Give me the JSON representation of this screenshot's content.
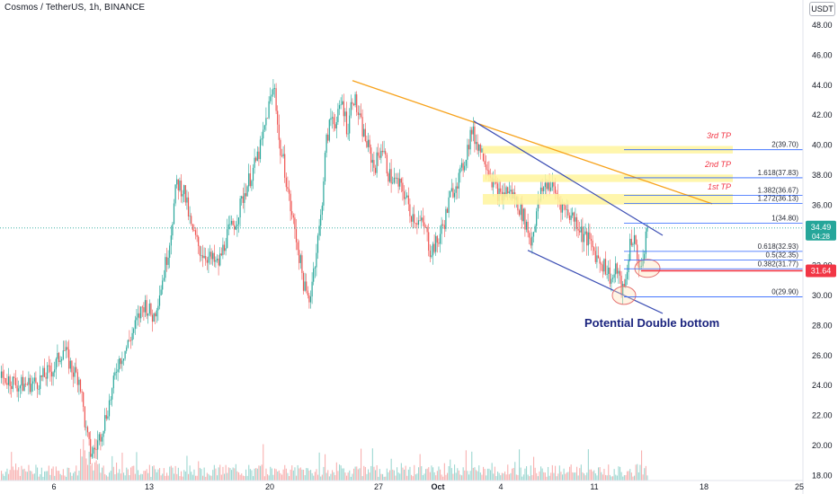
{
  "chart_title": "Cosmos / TetherUS, 1h, BINANCE",
  "currency_unit": "USDT",
  "chart_data": {
    "type": "candlestick",
    "y_axis": {
      "ticks": [
        "48.00",
        "46.00",
        "44.00",
        "42.00",
        "40.00",
        "38.00",
        "36.00",
        "34.00",
        "32.00",
        "30.00",
        "28.00",
        "26.00",
        "24.00",
        "22.00",
        "20.00",
        "18.00"
      ],
      "range": [
        18,
        49
      ]
    },
    "x_axis": {
      "ticks": [
        "6",
        "13",
        "20",
        "27",
        "Oct",
        "4",
        "11",
        "18",
        "25"
      ]
    },
    "current_price": {
      "value": "34.49",
      "countdown": "04:28",
      "color": "#26a69a"
    },
    "marked_price": {
      "value": "31.64",
      "color": "#f23645"
    },
    "price_path": [
      [
        0,
        24.5
      ],
      [
        10,
        24.4
      ],
      [
        20,
        24.0
      ],
      [
        40,
        24.2
      ],
      [
        60,
        25.2
      ],
      [
        70,
        26.5
      ],
      [
        80,
        25.0
      ],
      [
        88,
        24.5
      ],
      [
        95,
        21.0
      ],
      [
        100,
        19.5
      ],
      [
        106,
        19.8
      ],
      [
        115,
        21.5
      ],
      [
        125,
        23.8
      ],
      [
        130,
        25.5
      ],
      [
        140,
        26.5
      ],
      [
        150,
        28.0
      ],
      [
        160,
        29.5
      ],
      [
        170,
        28.5
      ],
      [
        180,
        31.0
      ],
      [
        188,
        33.5
      ],
      [
        196,
        37.5
      ],
      [
        204,
        37.0
      ],
      [
        212,
        34.5
      ],
      [
        222,
        33.0
      ],
      [
        232,
        32.5
      ],
      [
        242,
        32.0
      ],
      [
        252,
        34.0
      ],
      [
        262,
        35.0
      ],
      [
        272,
        37.0
      ],
      [
        282,
        38.5
      ],
      [
        290,
        40.0
      ],
      [
        298,
        42.5
      ],
      [
        305,
        44.0
      ],
      [
        310,
        40.0
      ],
      [
        316,
        38.5
      ],
      [
        322,
        36.0
      ],
      [
        330,
        33.5
      ],
      [
        338,
        30.5
      ],
      [
        343,
        29.5
      ],
      [
        350,
        32.5
      ],
      [
        356,
        35.0
      ],
      [
        362,
        40.0
      ],
      [
        368,
        42.0
      ],
      [
        374,
        41.5
      ],
      [
        380,
        43.0
      ],
      [
        386,
        41.0
      ],
      [
        392,
        43.5
      ],
      [
        400,
        41.5
      ],
      [
        408,
        40.0
      ],
      [
        416,
        38.5
      ],
      [
        424,
        40.0
      ],
      [
        432,
        38.0
      ],
      [
        440,
        37.5
      ],
      [
        448,
        37.0
      ],
      [
        456,
        35.5
      ],
      [
        464,
        35.0
      ],
      [
        472,
        34.5
      ],
      [
        478,
        33.0
      ],
      [
        486,
        33.5
      ],
      [
        494,
        35.0
      ],
      [
        500,
        36.5
      ],
      [
        506,
        37.5
      ],
      [
        512,
        38.0
      ],
      [
        518,
        39.5
      ],
      [
        524,
        41.0
      ],
      [
        527,
        40.5
      ],
      [
        532,
        40.0
      ],
      [
        540,
        39.0
      ],
      [
        548,
        37.5
      ],
      [
        556,
        36.5
      ],
      [
        564,
        37.0
      ],
      [
        572,
        36.5
      ],
      [
        580,
        35.5
      ],
      [
        586,
        34.5
      ],
      [
        590,
        33.5
      ],
      [
        596,
        35.5
      ],
      [
        602,
        37.0
      ],
      [
        608,
        37.5
      ],
      [
        616,
        37.0
      ],
      [
        624,
        36.0
      ],
      [
        632,
        35.5
      ],
      [
        640,
        35.0
      ],
      [
        648,
        34.0
      ],
      [
        656,
        33.5
      ],
      [
        664,
        32.5
      ],
      [
        672,
        32.0
      ],
      [
        680,
        31.0
      ],
      [
        686,
        31.8
      ],
      [
        690,
        30.5
      ],
      [
        693,
        30.2
      ],
      [
        696,
        31.2
      ],
      [
        700,
        33.5
      ],
      [
        704,
        34.0
      ],
      [
        708,
        32.5
      ],
      [
        712,
        32.0
      ],
      [
        715,
        31.8
      ],
      [
        717,
        34.0
      ],
      [
        720,
        34.6
      ]
    ],
    "volume_baseline": 18,
    "fibonacci_levels": [
      {
        "label": "2(39.70)",
        "value": 39.7
      },
      {
        "label": "1.618(37.83)",
        "value": 37.83
      },
      {
        "label": "1.382(36.67)",
        "value": 36.67
      },
      {
        "label": "1.272(36.13)",
        "value": 36.13
      },
      {
        "label": "1(34.80)",
        "value": 34.8
      },
      {
        "label": "0.618(32.93)",
        "value": 32.93
      },
      {
        "label": "0.5(32.35)",
        "value": 32.35
      },
      {
        "label": "0.382(31.77)",
        "value": 31.77
      },
      {
        "label": "0(29.90)",
        "value": 29.9
      }
    ],
    "targets": [
      {
        "label": "3rd TP",
        "value": 39.7
      },
      {
        "label": "2nd TP",
        "value": 37.83
      },
      {
        "label": "1st TP",
        "value": 36.4
      }
    ],
    "annotation": "Potential Double bottom",
    "colors": {
      "up": "#26a69a",
      "down": "#ef5350",
      "fib_line": "#2962ff",
      "trend_orange": "#f7a21b",
      "channel_blue": "#3f51b5",
      "tp_fill": "#fff59d",
      "tp_text": "#f23645",
      "annotation_text": "#1a237e"
    }
  }
}
